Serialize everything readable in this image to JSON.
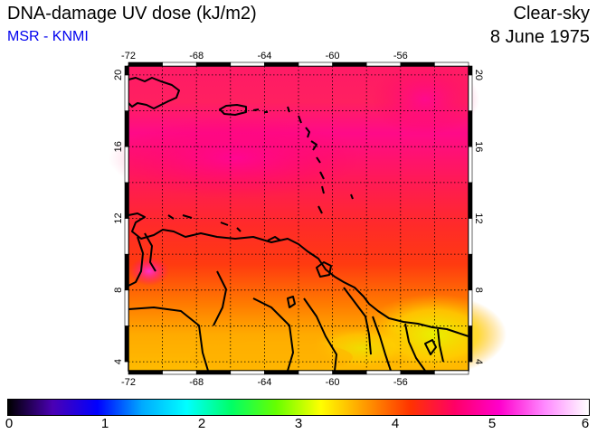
{
  "header": {
    "title": "DNA-damage UV dose (kJ/m2)",
    "source": "MSR - KNMI",
    "sky_condition": "Clear-sky",
    "date": "8 June 1975"
  },
  "colors": {
    "source_text": "#0000ee",
    "land_outline": "#000000"
  },
  "map": {
    "lon_ticks": [
      "-72",
      "-68",
      "-64",
      "-60",
      "-56"
    ],
    "lat_ticks": [
      "20",
      "16",
      "12",
      "8",
      "4"
    ],
    "lon_range": [
      -72,
      -52
    ],
    "lat_range": [
      3.5,
      20.5
    ],
    "grid": "dotted 2-degree graticule",
    "field_description_levels": {
      "north_atlantic_20N": 5.3,
      "caribbean_sea_14N": 5.1,
      "southern_caribbean_11N": 4.7,
      "venezuela_8N": 4.3,
      "guyana_coast_5N": 3.8
    }
  },
  "colorbar": {
    "min": 0,
    "max": 6,
    "labels": [
      "0",
      "1",
      "2",
      "3",
      "4",
      "5",
      "6"
    ],
    "stops": [
      "#000000",
      "#4b00b4",
      "#0000ff",
      "#00aaff",
      "#00ffff",
      "#00ff66",
      "#66ff00",
      "#ffff00",
      "#ff9900",
      "#ff3300",
      "#ff0066",
      "#ff00cc",
      "#ff88ff",
      "#ffffff"
    ]
  }
}
